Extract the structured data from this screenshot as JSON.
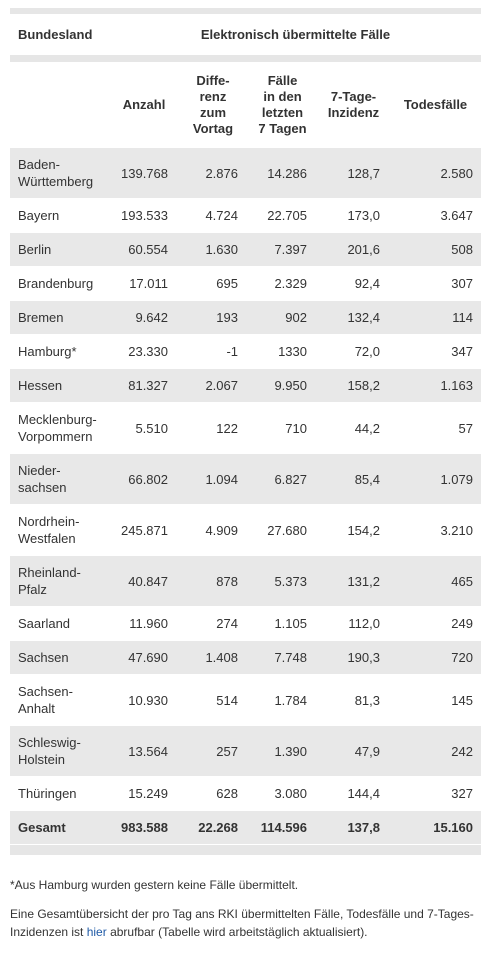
{
  "table": {
    "header": [
      "Bundesland",
      "Elektronisch übermittelte Fälle"
    ],
    "columns": [
      "Anzahl",
      "Diffe-\nrenz\nzum\nVortag",
      "Fälle\nin den\nletzten\n7 Tagen",
      "7-Tage-\nInzidenz",
      "Todesfälle"
    ],
    "rows": [
      [
        "Baden-\nWürttemberg",
        "139.768",
        "2.876",
        "14.286",
        "128,7",
        "2.580"
      ],
      [
        "Bayern",
        "193.533",
        "4.724",
        "22.705",
        "173,0",
        "3.647"
      ],
      [
        "Berlin",
        "60.554",
        "1.630",
        "7.397",
        "201,6",
        "508"
      ],
      [
        "Brandenburg",
        "17.011",
        "695",
        "2.329",
        "92,4",
        "307"
      ],
      [
        "Bremen",
        "9.642",
        "193",
        "902",
        "132,4",
        "114"
      ],
      [
        "Hamburg*",
        "23.330",
        "-1",
        "1330",
        "72,0",
        "347"
      ],
      [
        "Hessen",
        "81.327",
        "2.067",
        "9.950",
        "158,2",
        "1.163"
      ],
      [
        "Mecklenburg-\nVorpommern",
        "5.510",
        "122",
        "710",
        "44,2",
        "57"
      ],
      [
        "Nieder-\nsachsen",
        "66.802",
        "1.094",
        "6.827",
        "85,4",
        "1.079"
      ],
      [
        "Nordrhein-\nWestfalen",
        "245.871",
        "4.909",
        "27.680",
        "154,2",
        "3.210"
      ],
      [
        "Rheinland-\nPfalz",
        "40.847",
        "878",
        "5.373",
        "131,2",
        "465"
      ],
      [
        "Saarland",
        "11.960",
        "274",
        "1.105",
        "112,0",
        "249"
      ],
      [
        "Sachsen",
        "47.690",
        "1.408",
        "7.748",
        "190,3",
        "720"
      ],
      [
        "Sachsen-\nAnhalt",
        "10.930",
        "514",
        "1.784",
        "81,3",
        "145"
      ],
      [
        "Schleswig-\nHolstein",
        "13.564",
        "257",
        "1.390",
        "47,9",
        "242"
      ],
      [
        "Thüringen",
        "15.249",
        "628",
        "3.080",
        "144,4",
        "327"
      ]
    ],
    "total": [
      "Gesamt",
      "983.588",
      "22.268",
      "114.596",
      "137,8",
      "15.160"
    ]
  },
  "footnote": "*Aus Hamburg wurden gestern keine Fälle übermittelt.",
  "note": {
    "before": "Eine Gesamtübersicht der pro Tag ans RKI übermittelten Fälle, Todesfälle und 7-Tages-Inzidenzen ist ",
    "link": "hier",
    "after": " abrufbar (Tabelle wird arbeitstäglich aktualisiert)."
  }
}
